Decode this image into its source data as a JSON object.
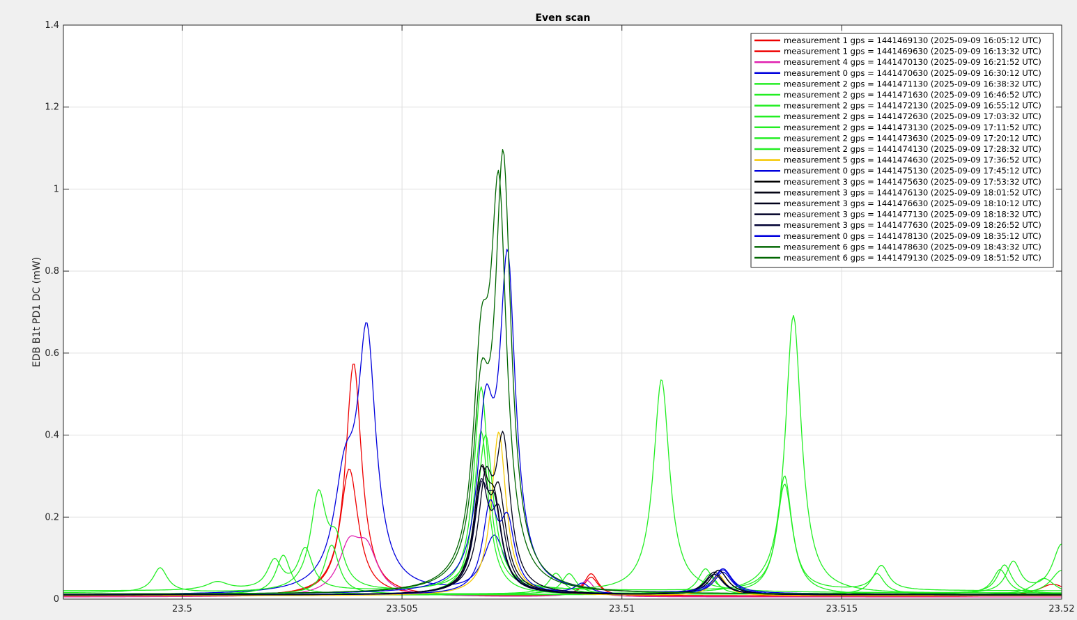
{
  "figure": {
    "colors": {
      "background": "#f0f0f0",
      "axes_background": "#ffffff",
      "grid": "#dfdfdf",
      "axis": "#262626"
    }
  },
  "chart_data": {
    "type": "line",
    "title": "Even scan",
    "xlabel": "",
    "ylabel": "EDB B1t PD1 DC (mW)",
    "xlim": [
      23.4973,
      23.52
    ],
    "ylim": [
      0,
      1.4
    ],
    "xticks": [
      23.5,
      23.505,
      23.51,
      23.515,
      23.52
    ],
    "xtick_labels": [
      "23.5",
      "23.505",
      "23.51",
      "23.515",
      "23.52"
    ],
    "yticks": [
      0,
      0.2,
      0.4,
      0.6,
      0.8,
      1,
      1.2,
      1.4
    ],
    "ytick_labels": [
      "0",
      "0.2",
      "0.4",
      "0.6",
      "0.8",
      "1",
      "1.2",
      "1.4"
    ],
    "grid": true,
    "legend_position": "top-right",
    "series": [
      {
        "name": "measurement 1 gps = 1441469130 (2025-09-09 16:05:12 UTC)",
        "color": "#ee0000",
        "baseline": 0.008,
        "peaks": [
          [
            23.5038,
            0.31,
            0.00025
          ],
          [
            23.5093,
            0.045,
            0.0002
          ]
        ]
      },
      {
        "name": "measurement 1 gps = 1441469630 (2025-09-09 16:13:32 UTC)",
        "color": "#ee0000",
        "baseline": 0.006,
        "peaks": [
          [
            23.5039,
            0.57,
            0.00022
          ],
          [
            23.5093,
            0.055,
            0.0002
          ],
          [
            23.5198,
            0.03,
            0.0004
          ]
        ]
      },
      {
        "name": "measurement 4 gps = 1441470130 (2025-09-09 16:21:52 UTC)",
        "color": "#e020b0",
        "baseline": 0.005,
        "peaks": [
          [
            23.5038,
            0.11,
            0.0003
          ],
          [
            23.5042,
            0.1,
            0.0003
          ],
          [
            23.5092,
            0.04,
            0.0002
          ]
        ]
      },
      {
        "name": "measurement 0 gps = 1441470630 (2025-09-09 16:30:12 UTC)",
        "color": "#0000dd",
        "baseline": 0.01,
        "peaks": [
          [
            23.5037,
            0.24,
            0.0003
          ],
          [
            23.5042,
            0.6,
            0.00025
          ],
          [
            23.5071,
            0.14,
            0.0003
          ],
          [
            23.5123,
            0.06,
            0.00025
          ]
        ]
      },
      {
        "name": "measurement 2 gps = 1441471130 (2025-09-09 16:38:32 UTC)",
        "color": "#22ee22",
        "baseline": 0.015,
        "peaks": [
          [
            23.4995,
            0.06,
            0.0002
          ],
          [
            23.5031,
            0.23,
            0.00022
          ],
          [
            23.5035,
            0.1,
            0.0002
          ],
          [
            23.5068,
            0.5,
            0.0002
          ],
          [
            23.5109,
            0.52,
            0.00022
          ]
        ]
      },
      {
        "name": "measurement 2 gps = 1441471630 (2025-09-09 16:46:52 UTC)",
        "color": "#22ee22",
        "baseline": 0.02,
        "peaks": [
          [
            23.5008,
            0.02,
            0.0003
          ],
          [
            23.5021,
            0.07,
            0.0002
          ],
          [
            23.5028,
            0.1,
            0.0002
          ],
          [
            23.5069,
            0.38,
            0.00022
          ],
          [
            23.5137,
            0.28,
            0.0002
          ],
          [
            23.5159,
            0.06,
            0.0002
          ]
        ]
      },
      {
        "name": "measurement 2 gps = 1441472130 (2025-09-09 16:55:12 UTC)",
        "color": "#22ee22",
        "baseline": 0.012,
        "peaks": [
          [
            23.5023,
            0.095,
            0.0002
          ],
          [
            23.5085,
            0.05,
            0.0002
          ],
          [
            23.5139,
            0.68,
            0.00022
          ],
          [
            23.5187,
            0.07,
            0.0002
          ]
        ]
      },
      {
        "name": "measurement 2 gps = 1441472630 (2025-09-09 17:03:32 UTC)",
        "color": "#22ee22",
        "baseline": 0.012,
        "peaks": [
          [
            23.5034,
            0.12,
            0.0002
          ],
          [
            23.5088,
            0.05,
            0.0002
          ],
          [
            23.5189,
            0.075,
            0.0002
          ],
          [
            23.52,
            0.12,
            0.00025
          ]
        ]
      },
      {
        "name": "measurement 2 gps = 1441473130 (2025-09-09 17:11:52 UTC)",
        "color": "#22ee22",
        "baseline": 0.01,
        "peaks": [
          [
            23.5068,
            0.4,
            0.0002
          ],
          [
            23.512,
            0.05,
            0.0002
          ],
          [
            23.52,
            0.06,
            0.0003
          ]
        ]
      },
      {
        "name": "measurement 2 gps = 1441473630 (2025-09-09 17:20:12 UTC)",
        "color": "#22ee22",
        "baseline": 0.01,
        "peaks": [
          [
            23.5119,
            0.06,
            0.0002
          ],
          [
            23.5137,
            0.27,
            0.00022
          ],
          [
            23.5196,
            0.04,
            0.0003
          ]
        ]
      },
      {
        "name": "measurement 2 gps = 1441474130 (2025-09-09 17:28:32 UTC)",
        "color": "#22ee22",
        "baseline": 0.012,
        "peaks": [
          [
            23.5158,
            0.05,
            0.0002
          ],
          [
            23.5186,
            0.06,
            0.0002
          ]
        ]
      },
      {
        "name": "measurement 5 gps = 1441474630 (2025-09-09 17:36:52 UTC)",
        "color": "#f5c800",
        "baseline": 0.008,
        "peaks": [
          [
            23.5072,
            0.4,
            0.0002
          ],
          [
            23.5122,
            0.05,
            0.0002
          ]
        ]
      },
      {
        "name": "measurement 0 gps = 1441475130 (2025-09-09 17:45:12 UTC)",
        "color": "#0000dd",
        "baseline": 0.01,
        "peaks": [
          [
            23.507,
            0.2,
            0.0002
          ],
          [
            23.5074,
            0.16,
            0.0002
          ],
          [
            23.5091,
            0.025,
            0.0002
          ],
          [
            23.5123,
            0.055,
            0.00025
          ]
        ]
      },
      {
        "name": "measurement 3 gps = 1441475630 (2025-09-09 17:53:32 UTC)",
        "color": "#000000",
        "baseline": 0.01,
        "peaks": [
          [
            23.5068,
            0.26,
            0.0002
          ],
          [
            23.5071,
            0.18,
            0.0002
          ],
          [
            23.5122,
            0.06,
            0.00025
          ]
        ]
      },
      {
        "name": "measurement 3 gps = 1441476130 (2025-09-09 18:01:52 UTC)",
        "color": "#000010",
        "baseline": 0.01,
        "peaks": [
          [
            23.5068,
            0.27,
            0.0002
          ],
          [
            23.5072,
            0.22,
            0.0002
          ],
          [
            23.5122,
            0.06,
            0.00025
          ]
        ]
      },
      {
        "name": "measurement 3 gps = 1441476630 (2025-09-09 18:10:12 UTC)",
        "color": "#00001a",
        "baseline": 0.01,
        "peaks": [
          [
            23.5069,
            0.24,
            0.0002
          ],
          [
            23.5073,
            0.35,
            0.0002
          ],
          [
            23.5121,
            0.055,
            0.00025
          ]
        ]
      },
      {
        "name": "measurement 3 gps = 1441477130 (2025-09-09 18:18:32 UTC)",
        "color": "#000028",
        "baseline": 0.01,
        "peaks": [
          [
            23.5068,
            0.25,
            0.0002
          ],
          [
            23.5072,
            0.17,
            0.0002
          ],
          [
            23.5121,
            0.05,
            0.00025
          ]
        ]
      },
      {
        "name": "measurement 3 gps = 1441477630 (2025-09-09 18:26:52 UTC)",
        "color": "#000033",
        "baseline": 0.01,
        "peaks": [
          [
            23.5068,
            0.22,
            0.0002
          ],
          [
            23.5071,
            0.18,
            0.0002
          ],
          [
            23.5121,
            0.05,
            0.00025
          ]
        ]
      },
      {
        "name": "measurement 0 gps = 1441478130 (2025-09-09 18:35:12 UTC)",
        "color": "#0000dd",
        "baseline": 0.012,
        "peaks": [
          [
            23.5069,
            0.38,
            0.00022
          ],
          [
            23.5074,
            0.78,
            0.00022
          ],
          [
            23.5123,
            0.06,
            0.00025
          ]
        ]
      },
      {
        "name": "measurement 6 gps = 1441478630 (2025-09-09 18:43:32 UTC)",
        "color": "#006600",
        "baseline": 0.012,
        "peaks": [
          [
            23.5068,
            0.48,
            0.00022
          ],
          [
            23.5072,
            0.92,
            0.00022
          ]
        ]
      },
      {
        "name": "measurement 6 gps = 1441479130 (2025-09-09 18:51:52 UTC)",
        "color": "#006600",
        "baseline": 0.012,
        "peaks": [
          [
            23.5068,
            0.4,
            0.00022
          ],
          [
            23.5073,
            1.02,
            0.00022
          ]
        ]
      }
    ]
  }
}
